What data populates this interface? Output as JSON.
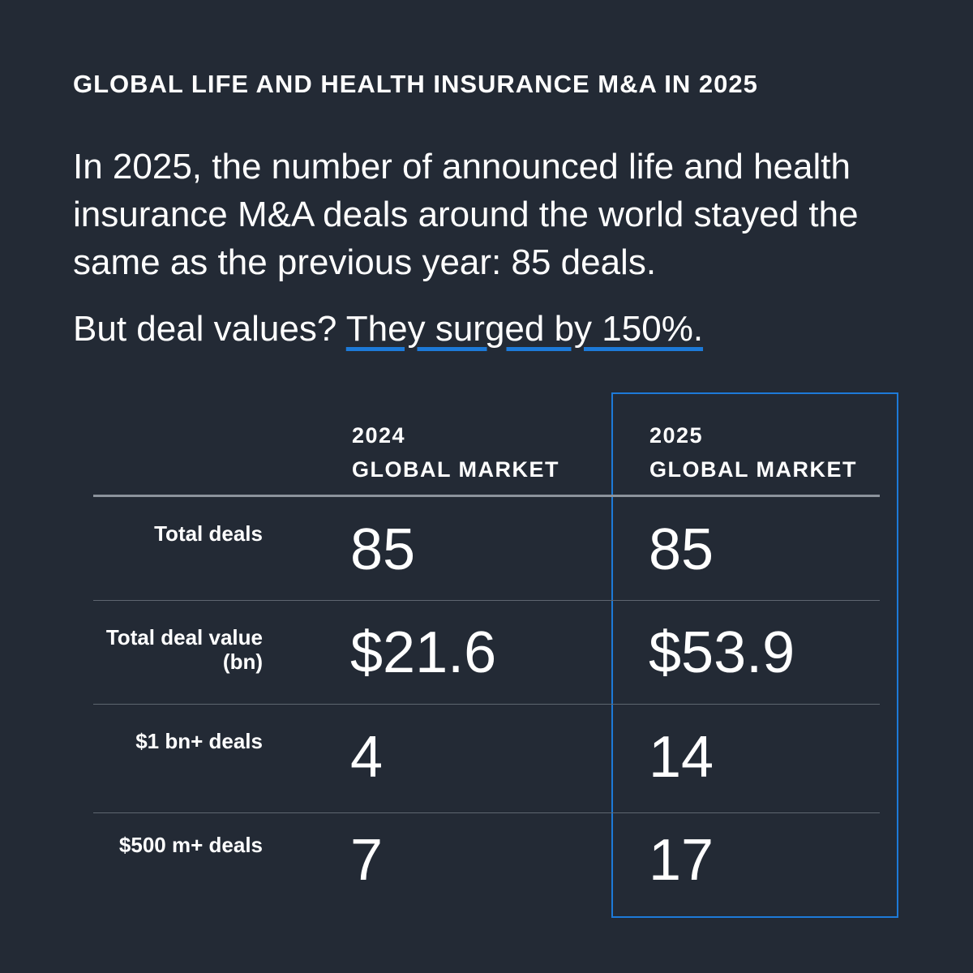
{
  "header": {
    "kicker": "GLOBAL LIFE AND HEALTH INSURANCE M&A IN 2025",
    "intro": "In 2025, the number of announced life and health insurance M&A deals around the world stayed the same as the previous year: 85 deals.",
    "subline_prefix": "But deal values? ",
    "subline_highlight": "They surged by 150%."
  },
  "table": {
    "columns": [
      {
        "year": "2024",
        "label": "GLOBAL MARKET"
      },
      {
        "year": "2025",
        "label": "GLOBAL MARKET"
      }
    ],
    "highlight_color": "#1d7ad8",
    "rows": [
      {
        "label_line1": "Total deals",
        "label_line2": "",
        "v2024": "85",
        "v2025": "85"
      },
      {
        "label_line1": "Total deal value",
        "label_line2": "(bn)",
        "v2024": "$21.6",
        "v2025": "$53.9"
      },
      {
        "label_line1": "$1 bn+ deals",
        "label_line2": "",
        "v2024": "4",
        "v2025": "14"
      },
      {
        "label_line1": "$500 m+ deals",
        "label_line2": "",
        "v2024": "7",
        "v2025": "17"
      }
    ]
  },
  "colors": {
    "background": "#232a35",
    "text": "#ffffff",
    "accent": "#1d7ad8"
  }
}
